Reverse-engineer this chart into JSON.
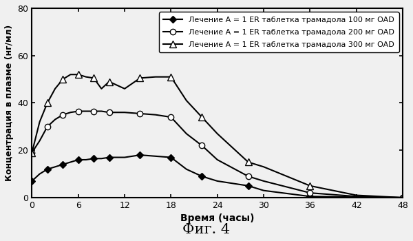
{
  "title": "Фиг. 4",
  "xlabel": "Время (часы)",
  "ylabel": "Концентрация в плазме (нг/мл)",
  "xlim": [
    0,
    48
  ],
  "ylim": [
    0,
    80
  ],
  "xticks": [
    0,
    6,
    12,
    18,
    24,
    30,
    36,
    42,
    48
  ],
  "yticks": [
    0,
    20,
    40,
    60,
    80
  ],
  "background_color": "#f0f0f0",
  "series": [
    {
      "label": "Лечение А = 1 ER таблетка трамадола 100 мг OAD",
      "x": [
        0,
        1,
        2,
        3,
        4,
        5,
        6,
        7,
        8,
        9,
        10,
        12,
        14,
        16,
        18,
        20,
        22,
        24,
        28,
        30,
        36,
        42,
        48
      ],
      "y": [
        7,
        10,
        12,
        13,
        14,
        15,
        16,
        16,
        16.5,
        16.5,
        17,
        17,
        18,
        17.5,
        17,
        12,
        9,
        7,
        5,
        3,
        0.5,
        0.2,
        0
      ],
      "marker": "D",
      "markerfacecolor": "#000000",
      "markeredgecolor": "#000000",
      "markersize": 5,
      "color": "#000000",
      "linewidth": 1.5,
      "markevery": 2
    },
    {
      "label": "Лечение А = 1 ER таблетка трамадола 200 мг OAD",
      "x": [
        0,
        1,
        2,
        3,
        4,
        5,
        6,
        7,
        8,
        9,
        10,
        12,
        14,
        16,
        18,
        20,
        22,
        24,
        28,
        30,
        36,
        42,
        48
      ],
      "y": [
        19,
        24,
        30,
        33,
        35,
        36,
        36.5,
        36.5,
        36.5,
        36.5,
        36,
        36,
        35.5,
        35,
        34,
        27,
        22,
        16,
        9,
        7,
        2,
        0.5,
        0
      ],
      "marker": "o",
      "markerfacecolor": "#ffffff",
      "markeredgecolor": "#000000",
      "markersize": 6,
      "color": "#000000",
      "linewidth": 1.5,
      "markevery": 2
    },
    {
      "label": "Лечение А = 1 ER таблетка трамадола 300 мг OAD",
      "x": [
        0,
        1,
        2,
        3,
        4,
        5,
        6,
        7,
        8,
        9,
        10,
        12,
        14,
        16,
        18,
        20,
        22,
        24,
        28,
        30,
        36,
        42,
        48
      ],
      "y": [
        19,
        32,
        40,
        46,
        50,
        52,
        52,
        51,
        50.5,
        46,
        49,
        46,
        50.5,
        51,
        51,
        41,
        34,
        27,
        15,
        13,
        5,
        1,
        0
      ],
      "marker": "^",
      "markerfacecolor": "#ffffff",
      "markeredgecolor": "#000000",
      "markersize": 7,
      "color": "#000000",
      "linewidth": 1.5,
      "markevery": 2
    }
  ]
}
